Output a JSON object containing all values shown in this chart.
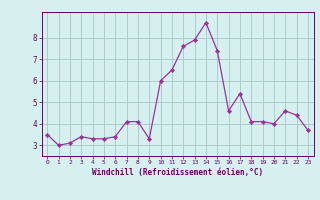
{
  "x": [
    0,
    1,
    2,
    3,
    4,
    5,
    6,
    7,
    8,
    9,
    10,
    11,
    12,
    13,
    14,
    15,
    16,
    17,
    18,
    19,
    20,
    21,
    22,
    23
  ],
  "y": [
    3.5,
    3.0,
    3.1,
    3.4,
    3.3,
    3.3,
    3.4,
    4.1,
    4.1,
    3.3,
    6.0,
    6.5,
    7.6,
    7.9,
    8.7,
    7.4,
    4.6,
    5.4,
    4.1,
    4.1,
    4.0,
    4.6,
    4.4,
    3.7
  ],
  "line_color": "#993399",
  "marker_color": "#993399",
  "bg_color": "#d6f0f0",
  "grid_color": "#aacccc",
  "axis_color": "#660066",
  "xlabel": "Windchill (Refroidissement éolien,°C)",
  "xlabel_color": "#660066",
  "tick_color": "#660066",
  "xlim": [
    -0.5,
    23.5
  ],
  "ylim": [
    2.5,
    9.2
  ],
  "yticks": [
    3,
    4,
    5,
    6,
    7,
    8
  ],
  "xticks": [
    0,
    1,
    2,
    3,
    4,
    5,
    6,
    7,
    8,
    9,
    10,
    11,
    12,
    13,
    14,
    15,
    16,
    17,
    18,
    19,
    20,
    21,
    22,
    23
  ]
}
